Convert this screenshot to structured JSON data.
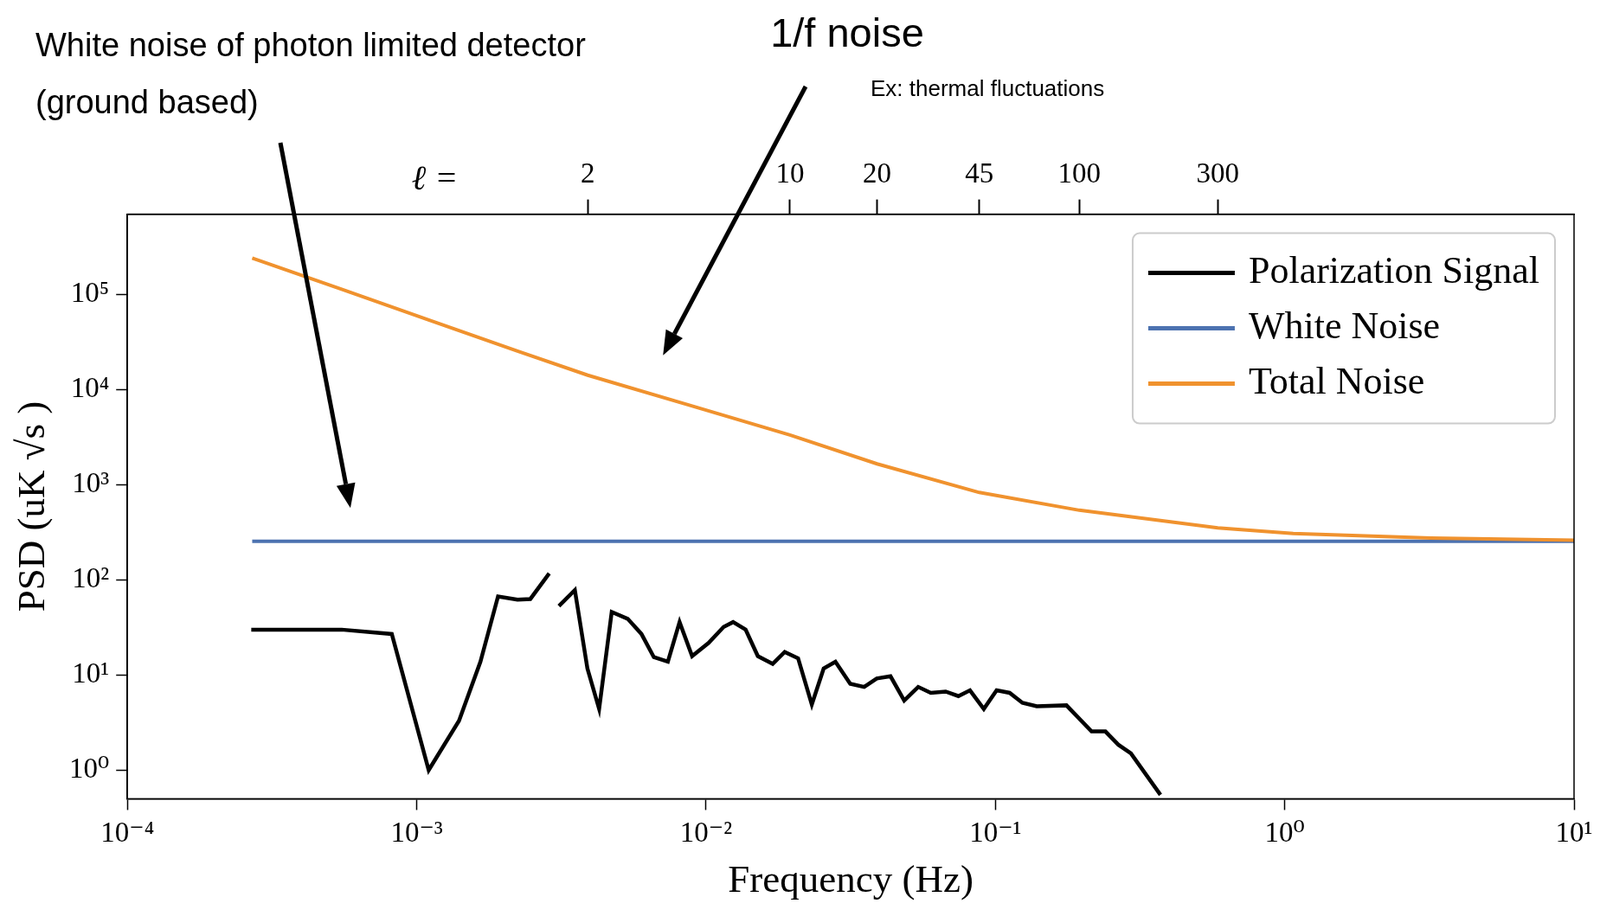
{
  "chart_data": {
    "type": "line",
    "x_label": "Frequency (Hz)",
    "y_label": "PSD (uK √s )",
    "log": true,
    "grid": false,
    "legend": "upper right",
    "xlim": [
      0.0001,
      10
    ],
    "ylim": [
      0.5,
      700000
    ],
    "xticks": [
      {
        "value": 0.0001,
        "label": "10⁻⁴"
      },
      {
        "value": 0.001,
        "label": "10⁻³"
      },
      {
        "value": 0.01,
        "label": "10⁻²"
      },
      {
        "value": 0.1,
        "label": "10⁻¹"
      },
      {
        "value": 1,
        "label": "10⁰"
      },
      {
        "value": 10,
        "label": "10¹"
      }
    ],
    "yticks": [
      {
        "value": 1,
        "label": "10⁰"
      },
      {
        "value": 10,
        "label": "10¹"
      },
      {
        "value": 100,
        "label": "10²"
      },
      {
        "value": 1000,
        "label": "10³"
      },
      {
        "value": 10000,
        "label": "10⁴"
      },
      {
        "value": 100000,
        "label": "10⁵"
      }
    ],
    "x2_label": "ℓ =",
    "x2ticks": [
      {
        "value": 0.0039,
        "label": "2"
      },
      {
        "value": 0.0195,
        "label": "10"
      },
      {
        "value": 0.039,
        "label": "20"
      },
      {
        "value": 0.088,
        "label": "45"
      },
      {
        "value": 0.195,
        "label": "100"
      },
      {
        "value": 0.587,
        "label": "300"
      }
    ],
    "series": [
      {
        "name": "Polarization Signal",
        "color": "#000000",
        "x": [
          0.000268,
          0.00055,
          0.00082,
          0.0011,
          0.0014,
          0.00166,
          0.00191,
          0.00223,
          0.00247,
          0.00287,
          0.003,
          0.0031,
          0.00352,
          0.00389,
          0.00427,
          0.00472,
          0.00536,
          0.00598,
          0.0066,
          0.00738,
          0.0081,
          0.00895,
          0.0102,
          0.0115,
          0.0124,
          0.0137,
          0.0151,
          0.017,
          0.0187,
          0.0208,
          0.0232,
          0.0255,
          0.028,
          0.0315,
          0.0352,
          0.0389,
          0.0434,
          0.0484,
          0.0541,
          0.0598,
          0.0673,
          0.0745,
          0.0817,
          0.0912,
          0.101,
          0.112,
          0.124,
          0.139,
          0.176,
          0.215,
          0.24,
          0.266,
          0.294,
          0.372
        ],
        "values": [
          30,
          30,
          27,
          1,
          3.3,
          13.8,
          67,
          62,
          63,
          117,
          null,
          53,
          78,
          11.7,
          4.4,
          46,
          39,
          27,
          15.4,
          13.8,
          36,
          15.8,
          21.7,
          32,
          36,
          30,
          15.8,
          13.1,
          17.5,
          15,
          4.9,
          11.7,
          13.8,
          8.1,
          7.5,
          9.2,
          9.7,
          5.4,
          7.5,
          6.5,
          6.7,
          6,
          6.9,
          4.4,
          6.9,
          6.5,
          5.1,
          4.7,
          4.8,
          2.55,
          2.55,
          1.85,
          1.5,
          0.55
        ]
      },
      {
        "name": "White Noise",
        "color": "#4c72b0",
        "x": [
          0.00027,
          10
        ],
        "values": [
          255,
          255
        ]
      },
      {
        "name": "Total Noise",
        "color": "#f0922e",
        "x": [
          0.00027,
          0.00055,
          0.0011,
          0.00223,
          0.0039,
          0.0087,
          0.0195,
          0.039,
          0.088,
          0.195,
          0.587,
          1.07,
          3.2,
          10
        ],
        "values": [
          242000,
          114000,
          54000,
          25500,
          14200,
          6900,
          3340,
          1660,
          830,
          540,
          352,
          308,
          276,
          262
        ]
      }
    ],
    "annotations": [
      {
        "text": "White noise of photon limited detector (ground based)",
        "x": 0.00059,
        "y": 570
      },
      {
        "text": "1/f noise",
        "x": 0.0071,
        "y": 23000
      },
      {
        "text": "Ex: thermal fluctuations"
      }
    ]
  }
}
